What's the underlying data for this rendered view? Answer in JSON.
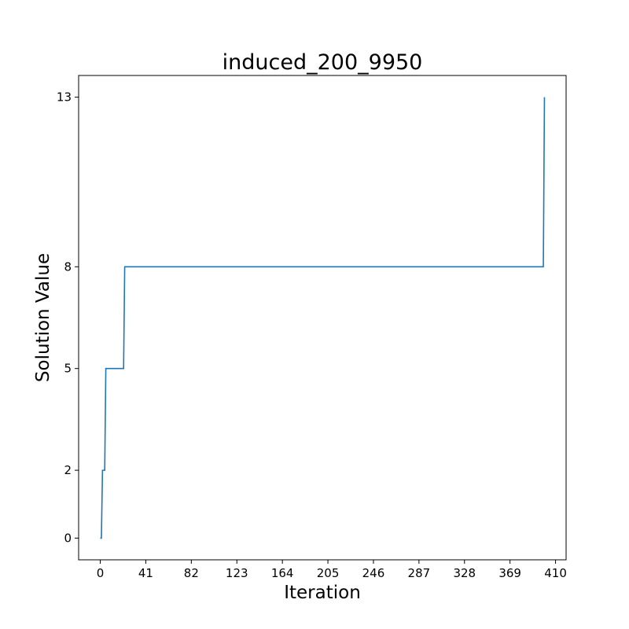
{
  "chart_data": {
    "type": "line",
    "title": "induced_200_9950",
    "xlabel": "Iteration",
    "ylabel": "Solution Value",
    "xlim": [
      -19.5,
      419.5
    ],
    "ylim": [
      -0.64,
      13.64
    ],
    "xticks": [
      0,
      41,
      82,
      123,
      164,
      205,
      246,
      287,
      328,
      369,
      410
    ],
    "yticks": [
      0,
      2,
      5,
      8,
      13
    ],
    "grid": false,
    "legend": "none",
    "series": [
      {
        "color": "#1f77b4",
        "x": [
          0,
          1,
          2,
          3,
          4,
          5,
          20,
          21,
          22,
          398,
          399,
          400
        ],
        "y": [
          0,
          0,
          2,
          2,
          2,
          5,
          5,
          5,
          8,
          8,
          8,
          13
        ]
      }
    ]
  }
}
